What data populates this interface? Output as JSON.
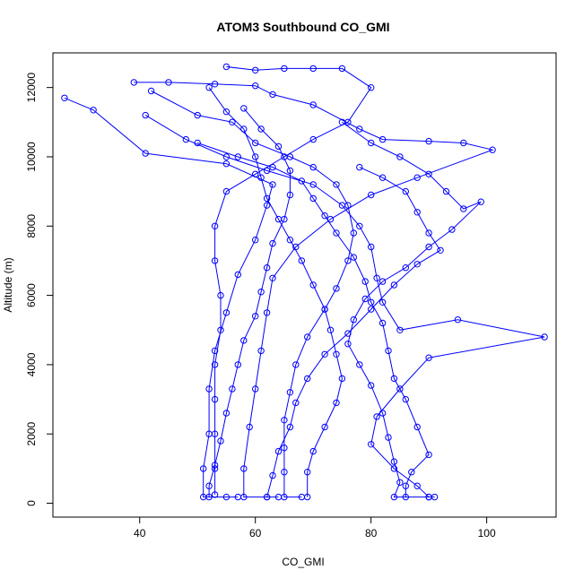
{
  "chart_data": {
    "type": "scatter",
    "title": "ATOM3 Southbound CO_GMI",
    "xlabel": "CO_GMI",
    "ylabel": "Altitude (m)",
    "xlim": [
      25,
      112
    ],
    "ylim": [
      -400,
      13000
    ],
    "x_ticks": [
      40,
      60,
      80,
      100
    ],
    "y_ticks": [
      0,
      2000,
      4000,
      6000,
      8000,
      10000,
      12000
    ],
    "grid": false,
    "marker": "open-circle",
    "connected": true,
    "series_color": "#0000ff",
    "series": [
      {
        "points": [
          [
            27,
            11700
          ],
          [
            32,
            11350
          ],
          [
            41,
            10100
          ],
          [
            55,
            9800
          ],
          [
            63,
            9200
          ],
          [
            62,
            8600
          ],
          [
            60,
            7600
          ],
          [
            57,
            6600
          ],
          [
            55,
            5500
          ],
          [
            53,
            4400
          ],
          [
            52,
            3300
          ],
          [
            52,
            2000
          ],
          [
            51,
            1000
          ],
          [
            51,
            180
          ],
          [
            55,
            180
          ],
          [
            57,
            180
          ]
        ]
      },
      {
        "points": [
          [
            39,
            12150
          ],
          [
            45,
            12150
          ],
          [
            53,
            12100
          ],
          [
            60,
            12050
          ],
          [
            63,
            11800
          ],
          [
            70,
            11500
          ],
          [
            78,
            10800
          ],
          [
            82,
            10500
          ],
          [
            90,
            10450
          ],
          [
            96,
            10400
          ],
          [
            101,
            10200
          ],
          [
            88,
            9400
          ],
          [
            80,
            8900
          ],
          [
            73,
            8200
          ],
          [
            67,
            7400
          ],
          [
            63,
            6500
          ],
          [
            62,
            5500
          ],
          [
            61,
            4400
          ],
          [
            60,
            3300
          ],
          [
            59,
            2200
          ],
          [
            58,
            1000
          ],
          [
            58,
            180
          ],
          [
            62,
            180
          ]
        ]
      },
      {
        "points": [
          [
            55,
            12600
          ],
          [
            60,
            12500
          ],
          [
            65,
            12550
          ],
          [
            70,
            12550
          ],
          [
            75,
            12550
          ],
          [
            80,
            12000
          ],
          [
            76,
            11000
          ],
          [
            70,
            10500
          ],
          [
            65,
            10000
          ],
          [
            60,
            9500
          ],
          [
            55,
            9000
          ],
          [
            53,
            8000
          ],
          [
            53,
            7000
          ],
          [
            54,
            6000
          ],
          [
            54,
            5000
          ],
          [
            53,
            4000
          ],
          [
            53,
            3000
          ],
          [
            53,
            2000
          ],
          [
            53,
            1000
          ],
          [
            53,
            250
          ]
        ]
      },
      {
        "points": [
          [
            41,
            11200
          ],
          [
            48,
            10500
          ],
          [
            55,
            10000
          ],
          [
            62,
            9600
          ],
          [
            70,
            9200
          ],
          [
            75,
            8600
          ],
          [
            78,
            8000
          ],
          [
            80,
            7400
          ],
          [
            81,
            6500
          ],
          [
            82,
            5800
          ],
          [
            85,
            5000
          ],
          [
            95,
            5300
          ],
          [
            110,
            4800
          ],
          [
            90,
            4200
          ],
          [
            85,
            3300
          ],
          [
            81,
            2500
          ],
          [
            80,
            1700
          ],
          [
            84,
            1000
          ],
          [
            88,
            500
          ],
          [
            90,
            180
          ],
          [
            91,
            180
          ]
        ]
      },
      {
        "points": [
          [
            42,
            11900
          ],
          [
            50,
            11200
          ],
          [
            56,
            11000
          ],
          [
            60,
            10400
          ],
          [
            66,
            10000
          ],
          [
            70,
            9700
          ],
          [
            74,
            9200
          ],
          [
            76,
            8600
          ],
          [
            77,
            7800
          ],
          [
            76,
            7000
          ],
          [
            74,
            6200
          ],
          [
            72,
            5600
          ],
          [
            69,
            4800
          ],
          [
            67,
            4000
          ],
          [
            66,
            3200
          ],
          [
            65,
            2400
          ],
          [
            65,
            1600
          ],
          [
            65,
            900
          ],
          [
            65,
            180
          ],
          [
            68,
            180
          ]
        ]
      },
      {
        "points": [
          [
            50,
            10400
          ],
          [
            57,
            10000
          ],
          [
            63,
            9700
          ],
          [
            68,
            9300
          ],
          [
            70,
            8800
          ],
          [
            72,
            8300
          ],
          [
            74,
            7800
          ],
          [
            77,
            7100
          ],
          [
            79,
            6400
          ],
          [
            80,
            5800
          ],
          [
            82,
            5200
          ],
          [
            83,
            4400
          ],
          [
            84,
            3600
          ],
          [
            86,
            3000
          ],
          [
            88,
            2200
          ],
          [
            90,
            1400
          ],
          [
            87,
            900
          ],
          [
            86,
            500
          ],
          [
            86,
            180
          ]
        ]
      },
      {
        "points": [
          [
            52,
            12000
          ],
          [
            55,
            11300
          ],
          [
            58,
            10800
          ],
          [
            60,
            10000
          ],
          [
            61,
            9400
          ],
          [
            62,
            8800
          ],
          [
            64,
            8200
          ],
          [
            66,
            7600
          ],
          [
            68,
            7000
          ],
          [
            70,
            6300
          ],
          [
            72,
            5600
          ],
          [
            73,
            5000
          ],
          [
            74,
            4300
          ],
          [
            75,
            3600
          ],
          [
            74,
            2900
          ],
          [
            72,
            2200
          ],
          [
            70,
            1500
          ],
          [
            69,
            900
          ],
          [
            69,
            180
          ]
        ]
      },
      {
        "points": [
          [
            75,
            11000
          ],
          [
            80,
            10400
          ],
          [
            85,
            10000
          ],
          [
            90,
            9500
          ],
          [
            93,
            9000
          ],
          [
            96,
            8500
          ],
          [
            99,
            8700
          ],
          [
            94,
            7900
          ],
          [
            90,
            7400
          ],
          [
            86,
            6800
          ],
          [
            82,
            6400
          ],
          [
            79,
            5900
          ],
          [
            77,
            5300
          ],
          [
            76,
            4600
          ],
          [
            78,
            4000
          ],
          [
            80,
            3400
          ],
          [
            82,
            2600
          ],
          [
            83,
            1900
          ],
          [
            84,
            1200
          ],
          [
            85,
            600
          ],
          [
            84,
            180
          ],
          [
            90,
            180
          ]
        ]
      },
      {
        "points": [
          [
            58,
            11400
          ],
          [
            61,
            10800
          ],
          [
            64,
            10300
          ],
          [
            66,
            9600
          ],
          [
            66,
            8900
          ],
          [
            65,
            8200
          ],
          [
            63,
            7500
          ],
          [
            62,
            6800
          ],
          [
            61,
            6100
          ],
          [
            60,
            5400
          ],
          [
            58,
            4700
          ],
          [
            57,
            4000
          ],
          [
            56,
            3300
          ],
          [
            55,
            2600
          ],
          [
            54,
            1800
          ],
          [
            53,
            1100
          ],
          [
            52,
            500
          ],
          [
            52,
            180
          ]
        ]
      },
      {
        "points": [
          [
            78,
            9700
          ],
          [
            82,
            9400
          ],
          [
            86,
            9000
          ],
          [
            88,
            8400
          ],
          [
            90,
            7800
          ],
          [
            92,
            7300
          ],
          [
            88,
            6900
          ],
          [
            84,
            6300
          ],
          [
            80,
            5600
          ],
          [
            76,
            4900
          ],
          [
            72,
            4300
          ],
          [
            69,
            3600
          ],
          [
            67,
            2900
          ],
          [
            66,
            2200
          ],
          [
            64,
            1500
          ],
          [
            63,
            800
          ],
          [
            62,
            180
          ],
          [
            64,
            180
          ]
        ]
      }
    ]
  }
}
